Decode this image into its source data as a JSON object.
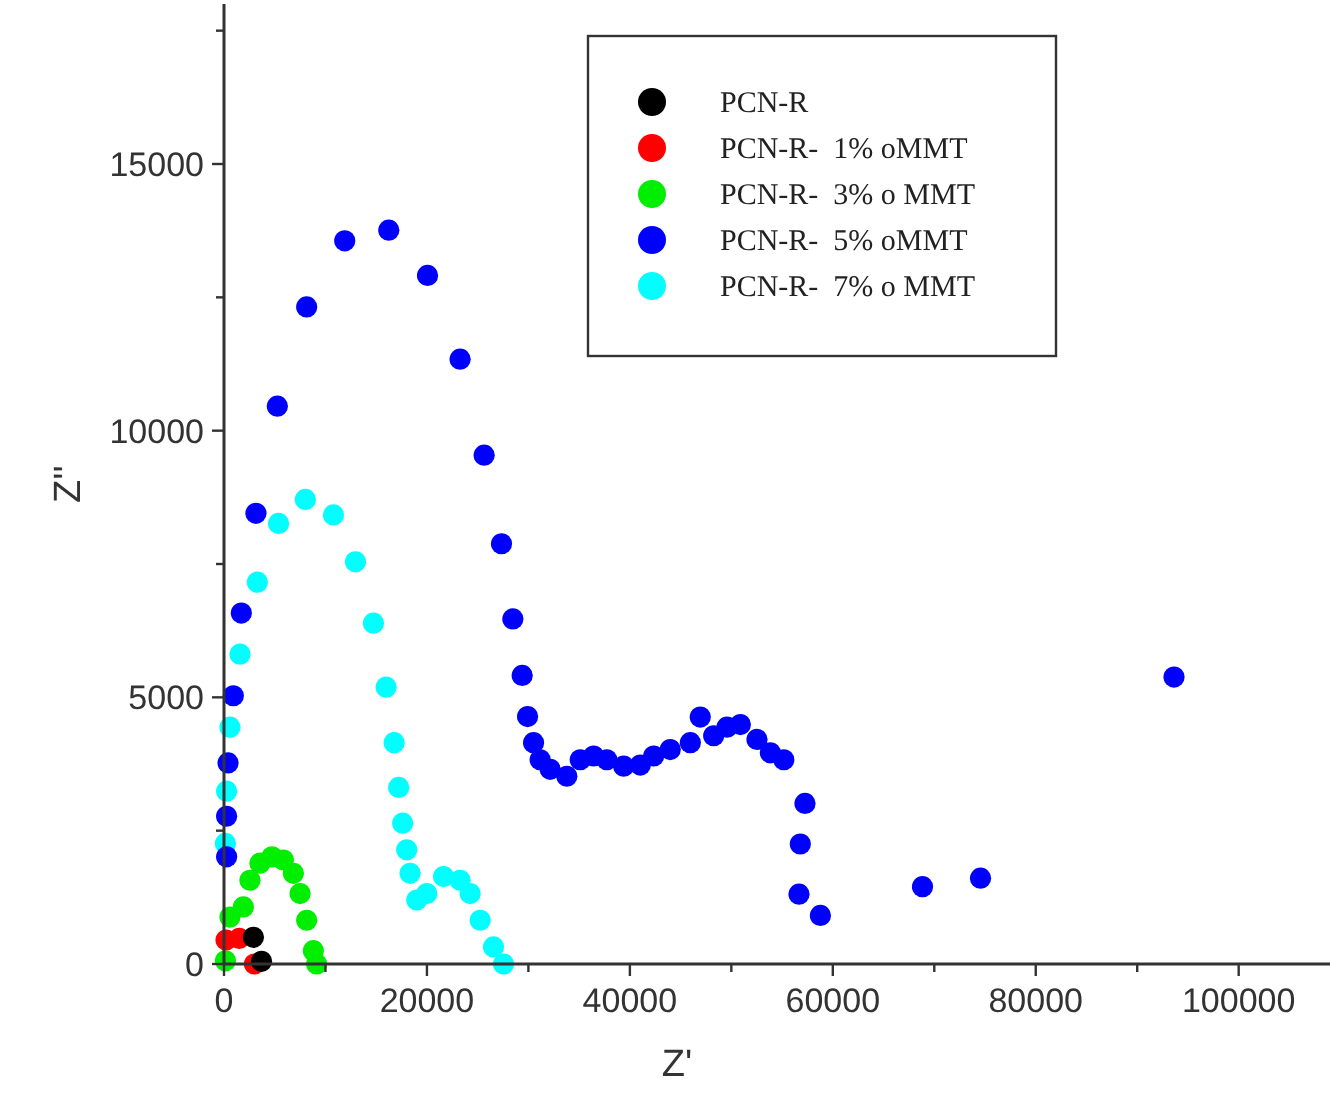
{
  "chart_data": {
    "type": "scatter",
    "xlabel": "Z'",
    "ylabel": "Z''",
    "xlim": [
      0,
      109000
    ],
    "ylim": [
      0,
      18000
    ],
    "xticks": [
      0,
      {
        "value": 10000,
        "label": null
      },
      20000,
      {
        "value": 30000,
        "label": null
      },
      40000,
      {
        "value": 50000,
        "label": null
      },
      60000,
      {
        "value": 70000,
        "label": null
      },
      80000,
      {
        "value": 90000,
        "label": null
      },
      100000
    ],
    "yticks": [
      0,
      {
        "value": 2500,
        "label": null
      },
      5000,
      {
        "value": 7500,
        "label": null
      },
      10000,
      {
        "value": 12500,
        "label": null
      },
      15000,
      {
        "value": 17500,
        "label": null
      }
    ],
    "grid": false,
    "legend": "top",
    "marker": "circle",
    "series": [
      {
        "name": "PCN-R",
        "color": "#000000",
        "x": [
          2900,
          3700
        ],
        "values": [
          500,
          50
        ]
      },
      {
        "name": "PCN-R-  1% oMMT",
        "color": "#ff0000",
        "x": [
          200,
          1500,
          3000
        ],
        "values": [
          450,
          480,
          0
        ]
      },
      {
        "name": "PCN-R-  3% o MMT",
        "color": "#00ee00",
        "x": [
          140,
          590,
          1910,
          2560,
          3550,
          4730,
          5860,
          6840,
          7500,
          8150,
          8810,
          9130
        ],
        "values": [
          60,
          880,
          1070,
          1570,
          1890,
          2010,
          1950,
          1700,
          1320,
          820,
          250,
          0
        ]
      },
      {
        "name": "PCN-R-  5% oMMT",
        "color": "#0000ff",
        "x": [
          260,
          260,
          400,
          920,
          1710,
          3150,
          5260,
          8150,
          11900,
          16240,
          20060,
          23270,
          25640,
          27350,
          28470,
          29390,
          29920,
          30510,
          31160,
          32150,
          33790,
          35110,
          36430,
          37730,
          39390,
          41030,
          42350,
          43980,
          45960,
          46940,
          48260,
          49570,
          50890,
          52530,
          53850,
          55170,
          57260,
          56800,
          56670,
          58780,
          68840,
          74560,
          93630
        ],
        "values": [
          2010,
          2770,
          3770,
          5030,
          6580,
          8450,
          10460,
          12320,
          13560,
          13760,
          12910,
          11340,
          9540,
          7880,
          6470,
          5410,
          4640,
          4150,
          3830,
          3650,
          3520,
          3830,
          3900,
          3830,
          3710,
          3730,
          3900,
          4020,
          4150,
          4630,
          4280,
          4440,
          4490,
          4210,
          3960,
          3830,
          3010,
          2250,
          1310,
          910,
          1450,
          1610,
          5380
        ]
      },
      {
        "name": "PCN-R-  7% o MMT",
        "color": "#00ffff",
        "x": [
          140,
          260,
          590,
          1580,
          3290,
          5380,
          8020,
          10790,
          12960,
          14730,
          15980,
          16770,
          17220,
          17610,
          18010,
          18340,
          19000,
          19990,
          21640,
          23270,
          24260,
          25250,
          26560,
          27550
        ],
        "values": [
          2260,
          3240,
          4440,
          5810,
          7160,
          8260,
          8710,
          8420,
          7540,
          6390,
          5190,
          4150,
          3310,
          2640,
          2140,
          1700,
          1200,
          1320,
          1640,
          1570,
          1320,
          820,
          320,
          0
        ]
      }
    ]
  }
}
